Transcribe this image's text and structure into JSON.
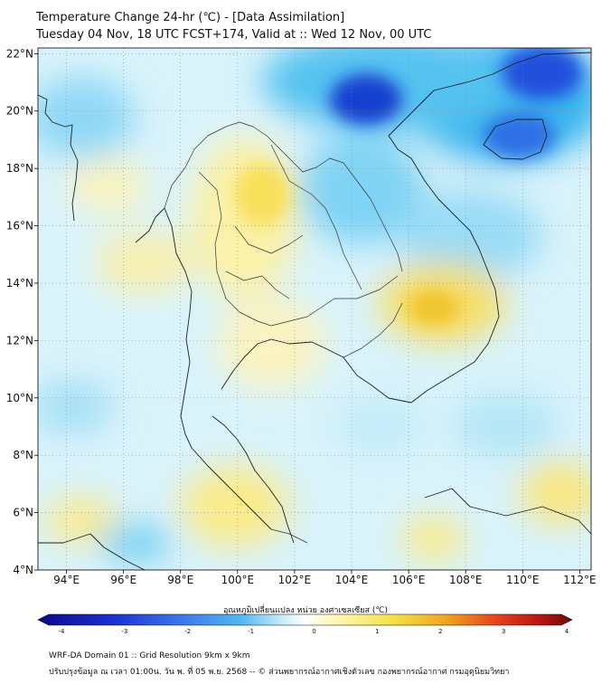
{
  "title": {
    "line1": "Temperature Change 24-hr (℃) - [Data Assimilation]",
    "line2": "Tuesday 04 Nov, 18 UTC FCST+174, Valid at :: Wed 12 Nov, 00 UTC"
  },
  "axes": {
    "lat_labels": [
      "22°N",
      "20°N",
      "18°N",
      "16°N",
      "14°N",
      "12°N",
      "10°N",
      "8°N",
      "6°N",
      "4°N"
    ],
    "lon_labels": [
      "94°E",
      "96°E",
      "98°E",
      "100°E",
      "102°E",
      "104°E",
      "106°E",
      "108°E",
      "110°E",
      "112°E"
    ],
    "lat_range": [
      4,
      22.2
    ],
    "lon_range": [
      93,
      112.4
    ]
  },
  "colorbar": {
    "title": "อุณหภูมิเปลี่ยนแปลง หน่วย องศาเซลเซียส (℃)",
    "tick_labels": [
      "-4",
      "-3",
      "-2",
      "-1",
      "0",
      "1",
      "2",
      "3",
      "4"
    ],
    "range": [
      -4,
      4
    ],
    "colors": [
      "#0a0a8c",
      "#1a2fd6",
      "#3d7ef0",
      "#52b8f0",
      "#c9eefa",
      "#ffffff",
      "#fff7b0",
      "#f7e24a",
      "#f0a81c",
      "#e8401a",
      "#b81410",
      "#6e0a0a"
    ]
  },
  "footer": {
    "line1": "WRF-DA Domain 01 :: Grid Resolution 9km x 9km",
    "line2": "ปรับปรุงข้อมูล ณ เวลา 01:00น. วัน พ. ที่ 05 พ.ย. 2568 -- © ส่วนพยากรณ์อากาศเชิงตัวเลข กองพยากรณ์อากาศ กรมอุตุนิยมวิทยา"
  }
}
